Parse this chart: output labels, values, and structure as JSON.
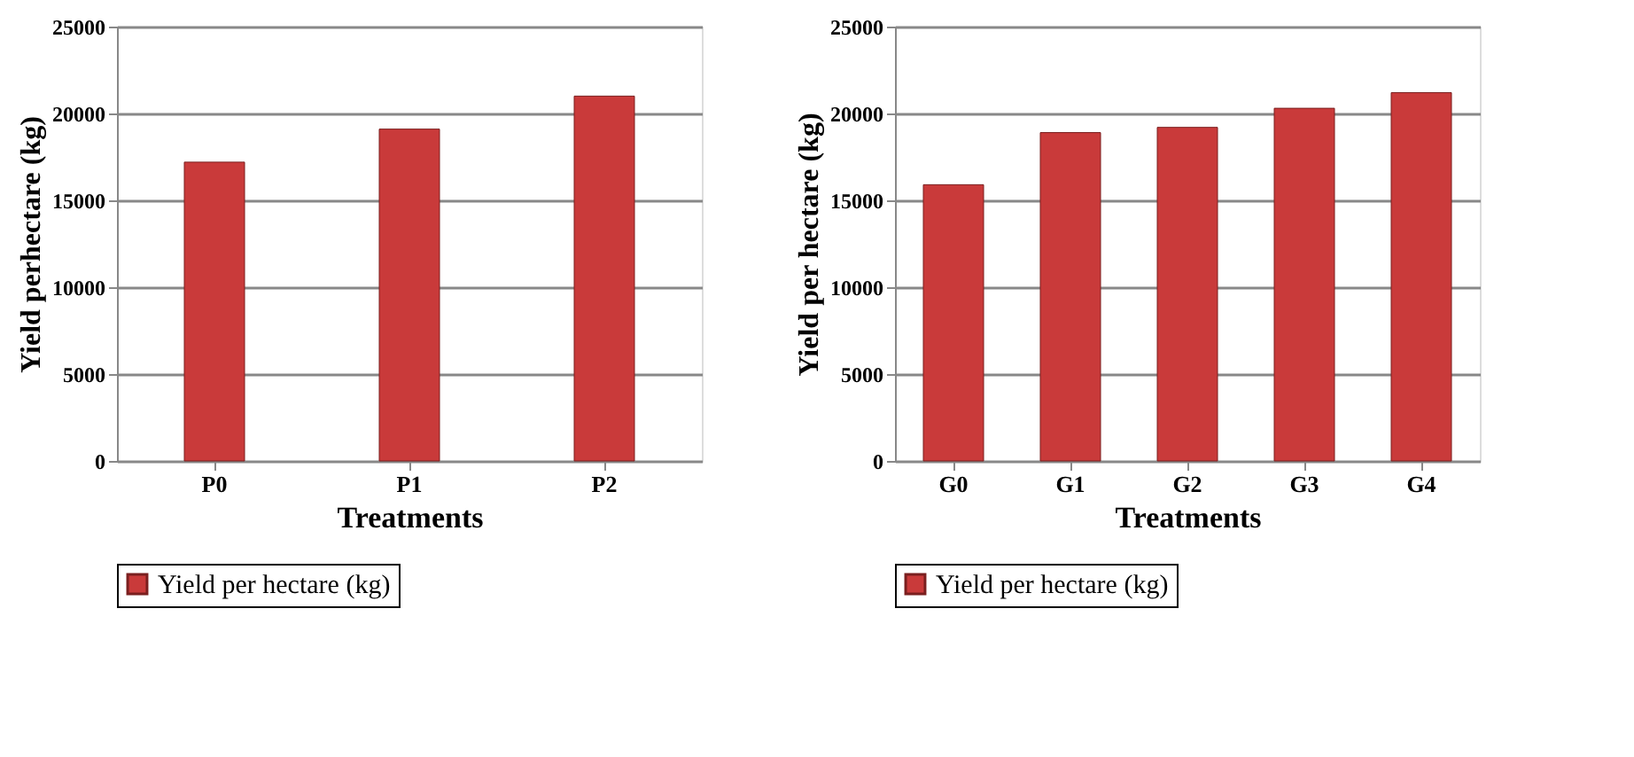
{
  "chart_data": [
    {
      "type": "bar",
      "categories": [
        "P0",
        "P1",
        "P2"
      ],
      "xlabel": "Treatments",
      "ylabel": "Yield perhectare (kg)",
      "series": [
        {
          "name": "Yield per hectare (kg)",
          "color": "#c93a3a",
          "values": [
            17200,
            19100,
            21000
          ]
        }
      ],
      "ylim": [
        0,
        25000
      ],
      "yticks": [
        0,
        5000,
        10000,
        15000,
        20000,
        25000
      ],
      "grid": "y",
      "legend": "bottom"
    },
    {
      "type": "bar",
      "categories": [
        "G0",
        "G1",
        "G2",
        "G3",
        "G4"
      ],
      "xlabel": "Treatments",
      "ylabel": "Yield per hectare (kg)",
      "series": [
        {
          "name": "Yield per hectare (kg)",
          "color": "#c93a3a",
          "values": [
            15900,
            18900,
            19200,
            20300,
            21200
          ]
        }
      ],
      "ylim": [
        0,
        25000
      ],
      "yticks": [
        0,
        5000,
        10000,
        15000,
        20000,
        25000
      ],
      "grid": "y",
      "legend": "bottom"
    }
  ]
}
